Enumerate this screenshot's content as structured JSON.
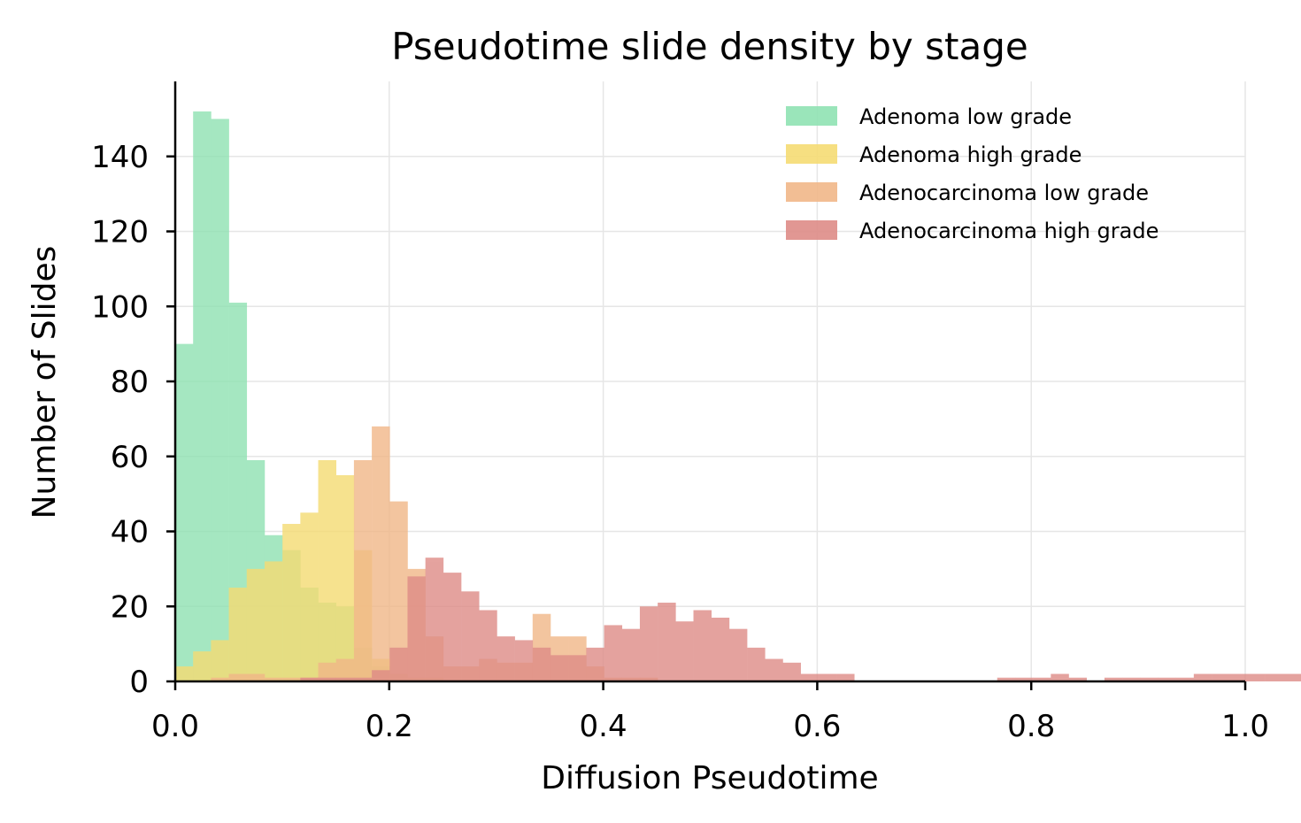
{
  "chart_data": {
    "type": "histogram",
    "title": "Pseudotime slide density by stage",
    "xlabel": "Diffusion Pseudotime",
    "ylabel": "Number of Slides",
    "xlim": [
      0,
      1
    ],
    "ylim": [
      0,
      160
    ],
    "xticks": [
      "0.0",
      "0.2",
      "0.4",
      "0.6",
      "0.8",
      "1.0"
    ],
    "yticks": [
      "0",
      "20",
      "40",
      "60",
      "80",
      "100",
      "120",
      "140"
    ],
    "bin_width": 0.0167,
    "grid": true,
    "legend_position": "top-right",
    "series": [
      {
        "name": "Adenoma low grade",
        "color": "#8fe2b2",
        "bin_start": 0,
        "values": [
          90,
          152,
          150,
          101,
          59,
          39,
          35,
          25,
          21,
          20,
          9,
          4
        ]
      },
      {
        "name": "Adenoma high grade",
        "color": "#f5db73",
        "bin_start": 0,
        "values": [
          4,
          8,
          11,
          25,
          30,
          32,
          42,
          45,
          59,
          55,
          35,
          6,
          2,
          1,
          1
        ]
      },
      {
        "name": "Adenocarcinoma low grade",
        "color": "#f1b788",
        "bin_start": 2,
        "values": [
          1,
          2,
          2,
          1,
          1,
          1,
          5,
          6,
          59,
          68,
          48,
          30,
          12,
          4,
          4,
          6,
          5,
          5,
          18,
          12,
          12,
          4,
          1,
          1,
          1
        ]
      },
      {
        "name": "Adenocarcinoma high grade",
        "color": "#de8c87",
        "bin_start": 7,
        "values": [
          1,
          1,
          1,
          1,
          3,
          9,
          28,
          33,
          29,
          24,
          19,
          12,
          11,
          9,
          7,
          7,
          9,
          15,
          14,
          20,
          21,
          16,
          19,
          17,
          14,
          9,
          6,
          5,
          2,
          2,
          2,
          0,
          0,
          0,
          0,
          0,
          0,
          0,
          0,
          1,
          1,
          1,
          2,
          1,
          0,
          1,
          1,
          1,
          1,
          1,
          2,
          2,
          2,
          2,
          2,
          2
        ]
      }
    ]
  }
}
